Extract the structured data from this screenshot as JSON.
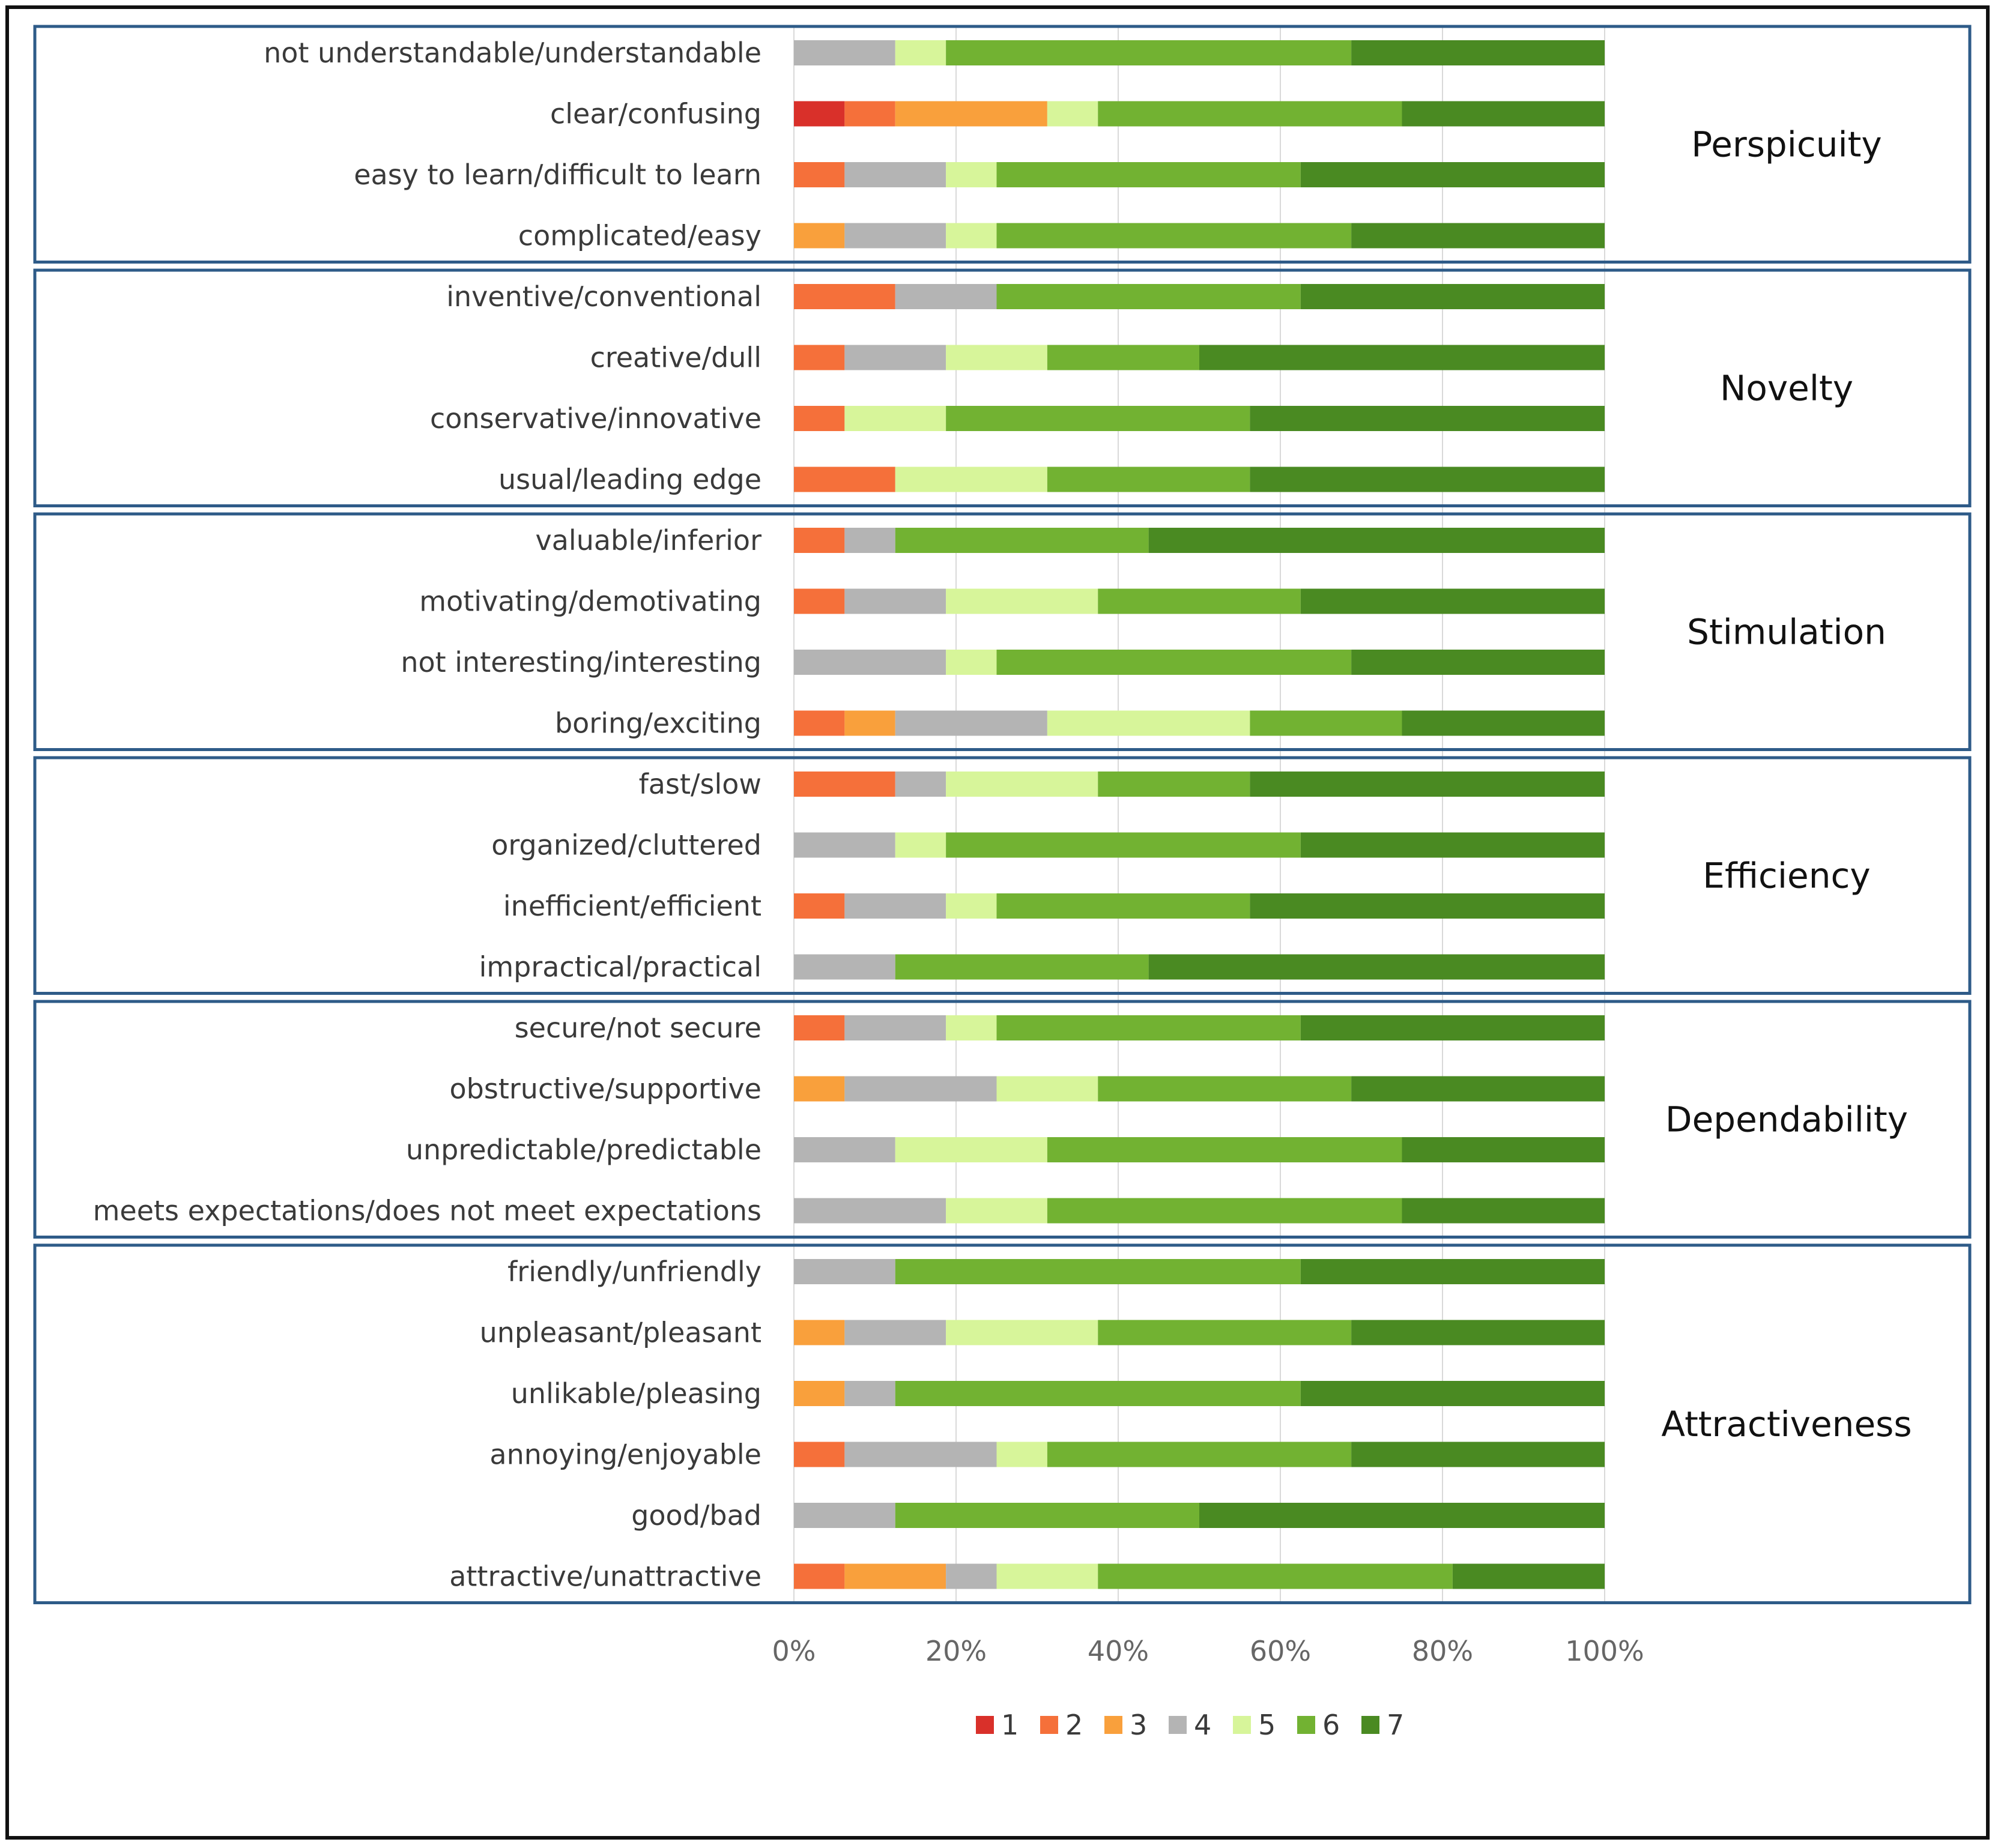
{
  "chart_data": {
    "type": "bar",
    "orientation": "horizontal",
    "stacked": "percent",
    "title": "",
    "xlabel": "",
    "ylabel": "",
    "xlim": [
      0,
      100
    ],
    "x_ticks": [
      "0%",
      "20%",
      "40%",
      "60%",
      "80%",
      "100%"
    ],
    "grid": "vertical",
    "legend_placement": "bottom",
    "series": [
      {
        "name": "1",
        "color": "#d9302a"
      },
      {
        "name": "2",
        "color": "#f5703a"
      },
      {
        "name": "3",
        "color": "#f9a03c"
      },
      {
        "name": "4",
        "color": "#b4b4b4"
      },
      {
        "name": "5",
        "color": "#d7f59a"
      },
      {
        "name": "6",
        "color": "#72b232"
      },
      {
        "name": "7",
        "color": "#4a8a22"
      }
    ],
    "groups": [
      {
        "name": "Perspicuity",
        "items": [
          {
            "label": "not understandable/understandable",
            "values": [
              0,
              0,
              0,
              12.5,
              6.25,
              50,
              31.25
            ]
          },
          {
            "label": "clear/confusing",
            "values": [
              6.25,
              6.25,
              18.75,
              0,
              6.25,
              37.5,
              25
            ]
          },
          {
            "label": "easy to learn/difficult to learn",
            "values": [
              0,
              6.25,
              0,
              12.5,
              6.25,
              37.5,
              37.5
            ]
          },
          {
            "label": "complicated/easy",
            "values": [
              0,
              0,
              6.25,
              12.5,
              6.25,
              43.75,
              31.25
            ]
          }
        ]
      },
      {
        "name": "Novelty",
        "items": [
          {
            "label": "inventive/conventional",
            "values": [
              0,
              12.5,
              0,
              12.5,
              0,
              37.5,
              37.5
            ]
          },
          {
            "label": "creative/dull",
            "values": [
              0,
              6.25,
              0,
              12.5,
              12.5,
              18.75,
              50
            ]
          },
          {
            "label": "conservative/innovative",
            "values": [
              0,
              6.25,
              0,
              0,
              12.5,
              37.5,
              43.75
            ]
          },
          {
            "label": "usual/leading edge",
            "values": [
              0,
              12.5,
              0,
              0,
              18.75,
              25,
              43.75
            ]
          }
        ]
      },
      {
        "name": "Stimulation",
        "items": [
          {
            "label": "valuable/inferior",
            "values": [
              0,
              6.25,
              0,
              6.25,
              0,
              31.25,
              56.25
            ]
          },
          {
            "label": "motivating/demotivating",
            "values": [
              0,
              6.25,
              0,
              12.5,
              18.75,
              25,
              37.5
            ]
          },
          {
            "label": "not interesting/interesting",
            "values": [
              0,
              0,
              0,
              18.75,
              6.25,
              43.75,
              31.25
            ]
          },
          {
            "label": "boring/exciting",
            "values": [
              0,
              6.25,
              6.25,
              18.75,
              25,
              18.75,
              25
            ]
          }
        ]
      },
      {
        "name": "Efficiency",
        "items": [
          {
            "label": "fast/slow",
            "values": [
              0,
              12.5,
              0,
              6.25,
              18.75,
              18.75,
              43.75
            ]
          },
          {
            "label": "organized/cluttered",
            "values": [
              0,
              0,
              0,
              12.5,
              6.25,
              43.75,
              37.5
            ]
          },
          {
            "label": "inefficient/efficient",
            "values": [
              0,
              6.25,
              0,
              12.5,
              6.25,
              31.25,
              43.75
            ]
          },
          {
            "label": "impractical/practical",
            "values": [
              0,
              0,
              0,
              12.5,
              0,
              31.25,
              56.25
            ]
          }
        ]
      },
      {
        "name": "Dependability",
        "items": [
          {
            "label": "secure/not secure",
            "values": [
              0,
              6.25,
              0,
              12.5,
              6.25,
              37.5,
              37.5
            ]
          },
          {
            "label": "obstructive/supportive",
            "values": [
              0,
              0,
              6.25,
              18.75,
              12.5,
              31.25,
              31.25
            ]
          },
          {
            "label": "unpredictable/predictable",
            "values": [
              0,
              0,
              0,
              12.5,
              18.75,
              43.75,
              25
            ]
          },
          {
            "label": "meets expectations/does not meet expectations",
            "values": [
              0,
              0,
              0,
              18.75,
              12.5,
              43.75,
              25
            ]
          }
        ]
      },
      {
        "name": "Attractiveness",
        "items": [
          {
            "label": "friendly/unfriendly",
            "values": [
              0,
              0,
              0,
              12.5,
              0,
              50,
              37.5
            ]
          },
          {
            "label": "unpleasant/pleasant",
            "values": [
              0,
              0,
              6.25,
              12.5,
              18.75,
              31.25,
              31.25
            ]
          },
          {
            "label": "unlikable/pleasing",
            "values": [
              0,
              0,
              6.25,
              6.25,
              0,
              50,
              37.5
            ]
          },
          {
            "label": "annoying/enjoyable",
            "values": [
              0,
              6.25,
              0,
              18.75,
              6.25,
              37.5,
              31.25
            ]
          },
          {
            "label": "good/bad",
            "values": [
              0,
              0,
              0,
              12.5,
              0,
              37.5,
              50
            ]
          },
          {
            "label": "attractive/unattractive",
            "values": [
              0,
              6.25,
              12.5,
              6.25,
              12.5,
              43.75,
              18.75
            ]
          }
        ]
      }
    ]
  }
}
